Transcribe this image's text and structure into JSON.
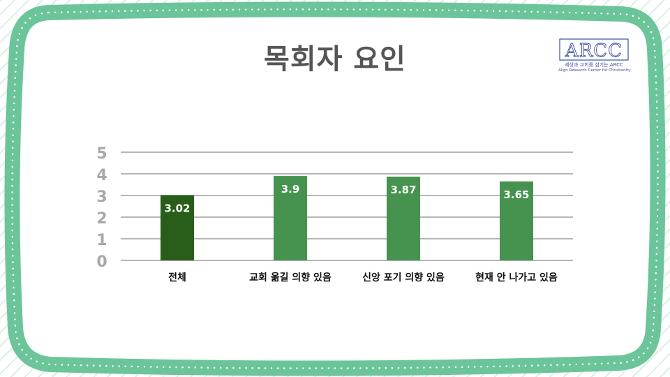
{
  "page": {
    "title": "목회자 요인",
    "logo": {
      "mark": "ARCC",
      "line1": "세상과 교회를 섬기는 ARCC",
      "line2": "Align Research Center for Christianity"
    }
  },
  "colors": {
    "frame": "#6cc59a",
    "first_bar": "#285e19",
    "bars": "#45934f",
    "grid": "#8a8a8a",
    "tick_label": "#a8a8a8",
    "logo": "#3a4fa0"
  },
  "chart_data": {
    "type": "bar",
    "title": "목회자 요인",
    "categories": [
      "전체",
      "교회 옮길 의향 있음",
      "신앙 포기 의향 있음",
      "현재 안 나가고 있음"
    ],
    "values": [
      3.02,
      3.9,
      3.87,
      3.65
    ],
    "data_labels": [
      "3.02",
      "3.9",
      "3.87",
      "3.65"
    ],
    "yticks": [
      0,
      1,
      2,
      3,
      4,
      5
    ],
    "ylim": [
      0,
      5
    ],
    "xlabel": "",
    "ylabel": "",
    "grid": true,
    "legend": "none"
  }
}
